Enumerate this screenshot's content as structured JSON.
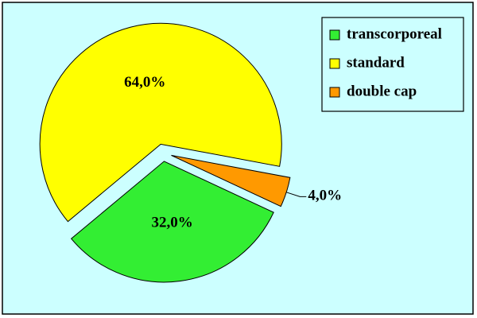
{
  "chart_data": {
    "type": "pie",
    "categories": [
      "transcorporeal",
      "standard",
      "double cap"
    ],
    "values": [
      32,
      64,
      4
    ],
    "value_labels": [
      "32,0%",
      "64,0%",
      "4,0%"
    ],
    "colors": [
      "#33ee33",
      "#ffff00",
      "#ff9900"
    ],
    "legend": "top-right"
  }
}
